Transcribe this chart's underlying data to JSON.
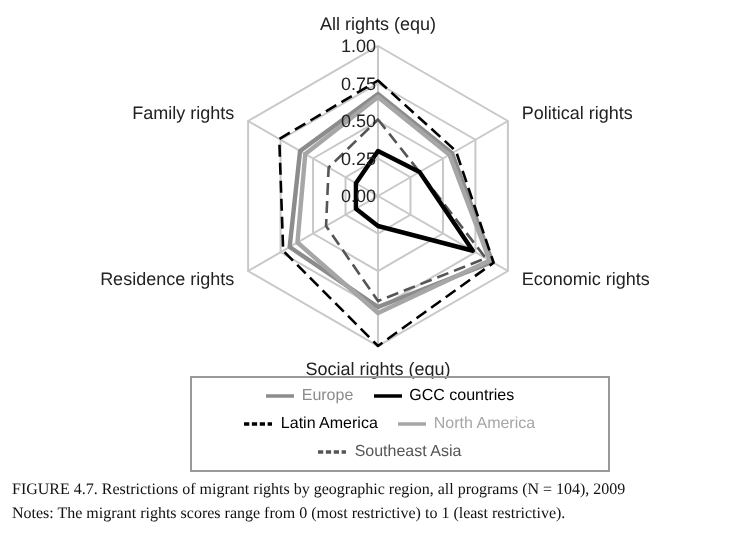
{
  "chart_data": {
    "type": "radar",
    "categories": [
      "All rights (equ)",
      "Political rights",
      "Economic rights",
      "Social rights (equ)",
      "Residence rights",
      "Family rights"
    ],
    "ylim": [
      0,
      1
    ],
    "yticks": [
      {
        "value": 0,
        "label": "0.00"
      },
      {
        "value": 0.25,
        "label": "0.25"
      },
      {
        "value": 0.5,
        "label": "0.50"
      },
      {
        "value": 0.75,
        "label": "0.75"
      },
      {
        "value": 1,
        "label": "1.00"
      }
    ],
    "grid": true,
    "legend": "bottom",
    "series": [
      {
        "name": "Europe",
        "color": "#8c8c8c",
        "line_style": "solid",
        "values": [
          0.68,
          0.57,
          0.88,
          0.74,
          0.68,
          0.6
        ]
      },
      {
        "name": "North America",
        "color": "#a6a6a6",
        "line_style": "solid",
        "values": [
          0.66,
          0.55,
          0.86,
          0.78,
          0.62,
          0.56
        ]
      },
      {
        "name": "Latin America",
        "color": "#000000",
        "line_style": "dashed",
        "values": [
          0.77,
          0.6,
          0.89,
          1.0,
          0.73,
          0.76
        ]
      },
      {
        "name": "Southeast Asia",
        "color": "#555555",
        "line_style": "dashed",
        "values": [
          0.51,
          0.32,
          0.83,
          0.7,
          0.4,
          0.38
        ]
      },
      {
        "name": "GCC countries",
        "color": "#000000",
        "line_style": "solid",
        "values": [
          0.3,
          0.32,
          0.73,
          0.2,
          0.17,
          0.17
        ]
      }
    ],
    "annotations": [
      "FIGURE 4.7. Restrictions of migrant rights by geographic region, all programs (N = 104), 2009",
      "Notes: The migrant rights scores range from 0 (most restrictive) to 1 (least restrictive)."
    ]
  }
}
